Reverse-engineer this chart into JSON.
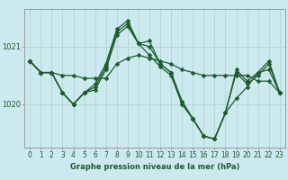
{
  "xlabel": "Graphe pression niveau de la mer (hPa)",
  "background_color": "#cde9f0",
  "grid_color": "#b0d4cc",
  "line_color": "#1a5c2a",
  "hours": [
    0,
    1,
    2,
    3,
    4,
    5,
    6,
    7,
    8,
    9,
    10,
    11,
    12,
    13,
    14,
    15,
    16,
    17,
    18,
    19,
    20,
    21,
    22,
    23
  ],
  "series1": [
    1020.75,
    1020.55,
    1020.55,
    1020.5,
    1020.5,
    1020.45,
    1020.45,
    1020.45,
    1020.7,
    1020.8,
    1020.85,
    1020.8,
    1020.75,
    1020.7,
    1020.6,
    1020.55,
    1020.5,
    1020.5,
    1020.5,
    1020.5,
    1020.5,
    1020.4,
    1020.4,
    1020.2
  ],
  "series2": [
    1020.75,
    1020.55,
    1020.55,
    1020.2,
    1020.0,
    1020.2,
    1020.25,
    1020.6,
    1021.2,
    1021.35,
    1021.05,
    1020.85,
    1020.65,
    1020.5,
    1020.0,
    1019.75,
    1019.45,
    1019.4,
    1019.85,
    1020.1,
    1020.3,
    1020.55,
    1020.6,
    1020.2
  ],
  "series3": [
    1020.75,
    1020.55,
    1020.55,
    1020.2,
    1020.0,
    1020.2,
    1020.3,
    1020.65,
    1021.25,
    1021.4,
    1021.05,
    1021.0,
    1020.7,
    1020.55,
    1020.05,
    1019.75,
    1019.45,
    1019.4,
    1019.85,
    1020.55,
    1020.35,
    1020.5,
    1020.7,
    1020.2
  ],
  "series4": [
    1020.75,
    1020.55,
    1020.55,
    1020.2,
    1020.0,
    1020.2,
    1020.35,
    1020.7,
    1021.3,
    1021.45,
    1021.05,
    1021.1,
    1020.7,
    1020.55,
    1020.05,
    1019.75,
    1019.45,
    1019.4,
    1019.85,
    1020.6,
    1020.4,
    1020.55,
    1020.75,
    1020.2
  ],
  "ylim_min": 1019.25,
  "ylim_max": 1021.65,
  "yticks": [
    1020,
    1021
  ],
  "xticks": [
    0,
    1,
    2,
    3,
    4,
    5,
    6,
    7,
    8,
    9,
    10,
    11,
    12,
    13,
    14,
    15,
    16,
    17,
    18,
    19,
    20,
    21,
    22,
    23
  ],
  "tick_fontsize": 5.5,
  "xlabel_fontsize": 6.0
}
